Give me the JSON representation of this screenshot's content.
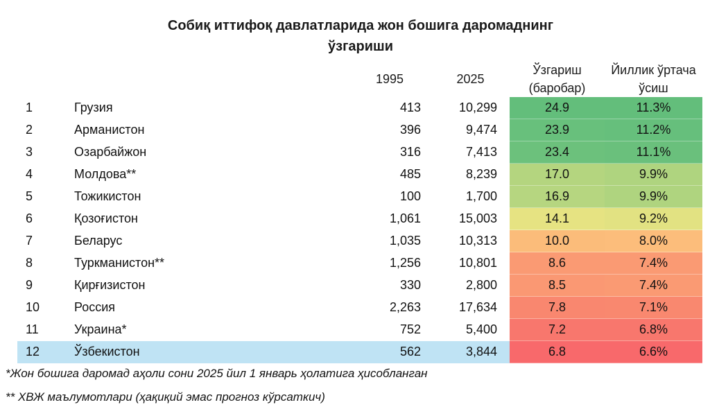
{
  "title_line1": "Собиқ иттифоқ давлатларида жон бошига даромаднинг",
  "title_line2": "ўзгариши",
  "chart_data": {
    "type": "table",
    "title": "Собиқ иттифоқ давлатларида жон бошига даромаднинг ўзгариши",
    "columns": [
      "",
      "",
      "1995",
      "2025",
      "Ўзгариш (баробар)",
      "Йиллик ўртача ўсиш"
    ],
    "headers": {
      "y1995": "1995",
      "y2025": "2025",
      "change_line1": "Ўзгариш",
      "change_line2": "(баробар)",
      "growth_line1": "Йиллик ўртача",
      "growth_line2": "ўсиш"
    },
    "rows": [
      {
        "rank": "1",
        "country": "Грузия",
        "v1995": "413",
        "v2025": "10,299",
        "change": "24.9",
        "growth": "11.3%",
        "change_color": "#63be7b",
        "growth_color": "#63be7b"
      },
      {
        "rank": "2",
        "country": "Арманистон",
        "v1995": "396",
        "v2025": "9,474",
        "change": "23.9",
        "growth": "11.2%",
        "change_color": "#68c07c",
        "growth_color": "#66bf7c"
      },
      {
        "rank": "3",
        "country": "Озарбайжон",
        "v1995": "316",
        "v2025": "7,413",
        "change": "23.4",
        "growth": "11.1%",
        "change_color": "#6cc17c",
        "growth_color": "#6ac07c"
      },
      {
        "rank": "4",
        "country": "Молдова**",
        "v1995": "485",
        "v2025": "8,239",
        "change": "17.0",
        "growth": "9.9%",
        "change_color": "#b4d57f",
        "growth_color": "#afd47f"
      },
      {
        "rank": "5",
        "country": "Тожикистон",
        "v1995": "100",
        "v2025": "1,700",
        "change": "16.9",
        "growth": "9.9%",
        "change_color": "#b6d680",
        "growth_color": "#afd47f"
      },
      {
        "rank": "6",
        "country": "Қозоғистон",
        "v1995": "1,061",
        "v2025": "15,003",
        "change": "14.1",
        "growth": "9.2%",
        "change_color": "#e6e382",
        "growth_color": "#e2e282"
      },
      {
        "rank": "7",
        "country": "Беларус",
        "v1995": "1,035",
        "v2025": "10,313",
        "change": "10.0",
        "growth": "8.0%",
        "change_color": "#fbbc7a",
        "growth_color": "#fcbd7b"
      },
      {
        "rank": "8",
        "country": "Туркманистон**",
        "v1995": "1,256",
        "v2025": "10,801",
        "change": "8.6",
        "growth": "7.4%",
        "change_color": "#fa9a73",
        "growth_color": "#fa9a73"
      },
      {
        "rank": "9",
        "country": "Қирғизистон",
        "v1995": "330",
        "v2025": "2,800",
        "change": "8.5",
        "growth": "7.4%",
        "change_color": "#fa9873",
        "growth_color": "#fa9a73"
      },
      {
        "rank": "10",
        "country": "Россия",
        "v1995": "2,263",
        "v2025": "17,634",
        "change": "7.8",
        "growth": "7.1%",
        "change_color": "#f9876f",
        "growth_color": "#f9886f"
      },
      {
        "rank": "11",
        "country": "Украина*",
        "v1995": "752",
        "v2025": "5,400",
        "change": "7.2",
        "growth": "6.8%",
        "change_color": "#f8776d",
        "growth_color": "#f8776d"
      },
      {
        "rank": "12",
        "country": "Ўзбекистон",
        "v1995": "562",
        "v2025": "3,844",
        "change": "6.8",
        "growth": "6.6%",
        "change_color": "#f8696b",
        "growth_color": "#f8696b"
      }
    ],
    "highlight_rank": "12",
    "highlight_color": "#bfe3f4"
  },
  "footnotes": {
    "note1": "*Жон бошига даромад аҳоли сони 2025 йил 1 январь ҳолатига ҳисобланган",
    "note2": "**  ХВЖ маълумотлари (ҳақиқий эмас прогноз кўрсаткич)"
  }
}
